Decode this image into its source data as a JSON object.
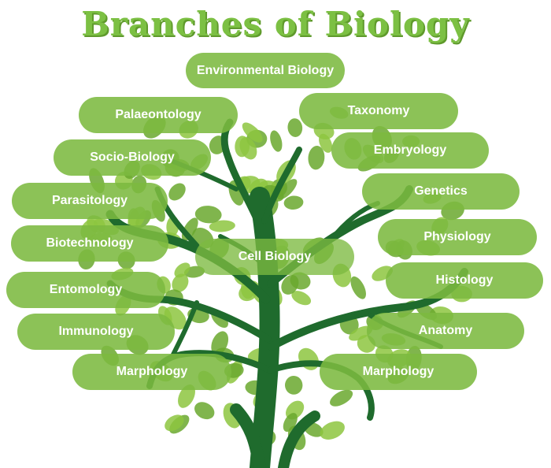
{
  "title": "Branches of Biology",
  "colors": {
    "title": "#7cc043",
    "pill": "#7cba40",
    "trunk": "#1f6b2d",
    "leaf": "#8dc63f",
    "leaf_dark": "#6aa82e"
  },
  "branches": [
    "Environmental Biology",
    "Palaeontology",
    "Taxonomy",
    "Socio-Biology",
    "Embryology",
    "Parasitology",
    "Genetics",
    "Biotechnology",
    "Physiology",
    "Cell Biology",
    "Entomology",
    "Histology",
    "Immunology",
    "Anatomy",
    "Marphology",
    "Marphology"
  ]
}
